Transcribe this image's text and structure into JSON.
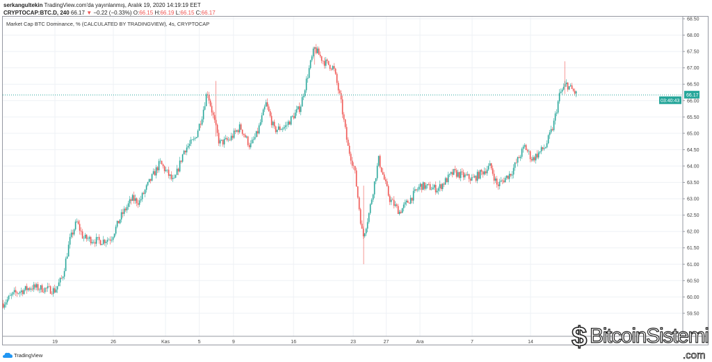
{
  "header": {
    "author": "serkangultekin",
    "published": "TradingView.com'da yayınlanmış, Aralık 19, 2020 14:19:19 EET",
    "symbol": "CRYPTOCAP:BTC.D, 240",
    "last": "66.17",
    "change": "−0.22 (−0.33%)",
    "o_label": "O:",
    "o": "66.15",
    "h_label": "H:",
    "h": "66.19",
    "l_label": "L:",
    "l": "66.15",
    "c_label": "C:",
    "c": "66.17"
  },
  "legend": "Market Cap BTC Dominance, % (CALCULATED BY TRADINGVIEW), 4s, CRYPTOCAP",
  "price_label": "66.17",
  "countdown": "03:40:43",
  "footer": {
    "brand": "TradingView"
  },
  "watermark": {
    "name": "BitcoinSistemi",
    "tld": ".com"
  },
  "colors": {
    "up": "#26a69a",
    "down": "#ef5350",
    "grid": "#eef1f5",
    "last": "#26a69a"
  },
  "chart_data": {
    "type": "candlestick",
    "title": "Market Cap BTC Dominance, %",
    "ylim": [
      59.3,
      68.6
    ],
    "y_ticks": [
      "68.50",
      "68.00",
      "67.50",
      "67.00",
      "66.50",
      "66.00",
      "65.50",
      "65.00",
      "64.50",
      "64.00",
      "63.50",
      "63.00",
      "62.50",
      "62.00",
      "61.50",
      "61.00",
      "60.50",
      "60.00",
      "59.50"
    ],
    "x_unit": "days since Oct 19",
    "x_ticks": [
      {
        "label": "19",
        "day": 0
      },
      {
        "label": "26",
        "day": 7
      },
      {
        "label": "Kas",
        "day": 13.25
      },
      {
        "label": "5",
        "day": 17.3
      },
      {
        "label": "9",
        "day": 21.4
      },
      {
        "label": "16",
        "day": 28.6
      },
      {
        "label": "23",
        "day": 35.75
      },
      {
        "label": "27",
        "day": 39.7
      },
      {
        "label": "Ara",
        "day": 43.75
      },
      {
        "label": "7",
        "day": 50
      },
      {
        "label": "14",
        "day": 57
      }
    ],
    "waypoints": [
      [
        -6.2,
        59.8
      ],
      [
        -4.9,
        60.1
      ],
      [
        -2.8,
        60.3
      ],
      [
        0,
        60.2
      ],
      [
        0.9,
        60.6
      ],
      [
        1.75,
        61.7
      ],
      [
        2.6,
        62.3
      ],
      [
        3.4,
        61.8
      ],
      [
        5.5,
        61.7
      ],
      [
        6.75,
        61.8
      ],
      [
        8,
        62.5
      ],
      [
        9.25,
        63.0
      ],
      [
        10.1,
        62.9
      ],
      [
        11.3,
        63.5
      ],
      [
        12.6,
        64.1
      ],
      [
        14.25,
        63.5
      ],
      [
        15.5,
        64.5
      ],
      [
        16.75,
        64.8
      ],
      [
        17.6,
        65.5
      ],
      [
        18.25,
        66.3
      ],
      [
        18.8,
        65.7
      ],
      [
        19.7,
        64.7
      ],
      [
        20.9,
        64.8
      ],
      [
        22.2,
        65.2
      ],
      [
        23.4,
        64.6
      ],
      [
        24.25,
        65.0
      ],
      [
        25.3,
        65.9
      ],
      [
        26.3,
        65.1
      ],
      [
        27.6,
        65.2
      ],
      [
        29.4,
        65.8
      ],
      [
        30.5,
        67.0
      ],
      [
        31.1,
        67.6
      ],
      [
        32.2,
        67.2
      ],
      [
        33.4,
        67.0
      ],
      [
        34.25,
        66.0
      ],
      [
        35.1,
        64.6
      ],
      [
        35.9,
        63.9
      ],
      [
        36.9,
        61.8
      ],
      [
        37.6,
        62.5
      ],
      [
        38.8,
        64.2
      ],
      [
        40.1,
        63.0
      ],
      [
        41.3,
        62.6
      ],
      [
        42.6,
        63.0
      ],
      [
        43.8,
        63.4
      ],
      [
        45.9,
        63.3
      ],
      [
        47.75,
        63.8
      ],
      [
        50.1,
        63.6
      ],
      [
        52.2,
        64.0
      ],
      [
        53,
        63.4
      ],
      [
        54.7,
        63.8
      ],
      [
        56.3,
        64.6
      ],
      [
        57.2,
        64.2
      ],
      [
        58.8,
        64.6
      ],
      [
        59.7,
        65.2
      ],
      [
        60.5,
        66.2
      ],
      [
        61.3,
        66.5
      ],
      [
        62.6,
        66.17
      ]
    ]
  }
}
